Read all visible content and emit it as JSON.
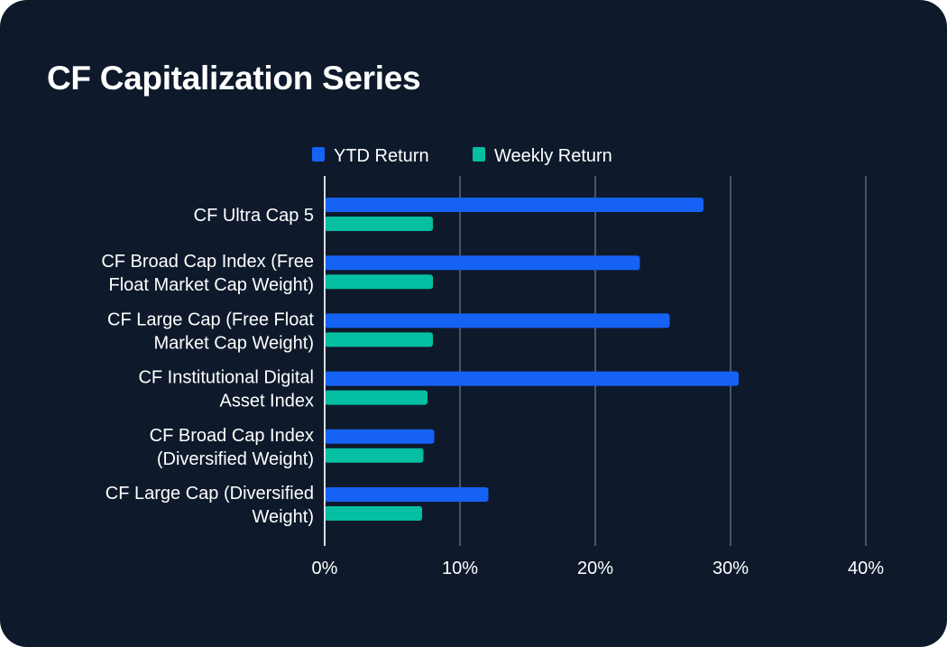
{
  "chart_data": {
    "type": "bar",
    "orientation": "horizontal",
    "title": "CF Capitalization Series",
    "categories": [
      [
        "CF Ultra Cap 5"
      ],
      [
        "CF Broad Cap Index (Free",
        "Float Market Cap Weight)"
      ],
      [
        "CF Large Cap (Free Float",
        "Market Cap Weight)"
      ],
      [
        "CF Institutional Digital",
        "Asset Index"
      ],
      [
        "CF Broad Cap Index",
        "(Diversified Weight)"
      ],
      [
        "CF Large Cap (Diversified",
        "Weight)"
      ]
    ],
    "series": [
      {
        "name": "YTD Return",
        "color": "#1662f5",
        "values": [
          28.0,
          23.3,
          25.5,
          30.6,
          8.1,
          12.1
        ]
      },
      {
        "name": "Weekly Return",
        "color": "#05bfa3",
        "values": [
          8.0,
          8.0,
          8.0,
          7.6,
          7.3,
          7.2
        ]
      }
    ],
    "x_ticks": [
      "0%",
      "10%",
      "20%",
      "30%",
      "40%"
    ],
    "xlim": [
      0,
      40
    ],
    "grid": true,
    "legend": "top-center",
    "xlabel": "",
    "ylabel": ""
  }
}
